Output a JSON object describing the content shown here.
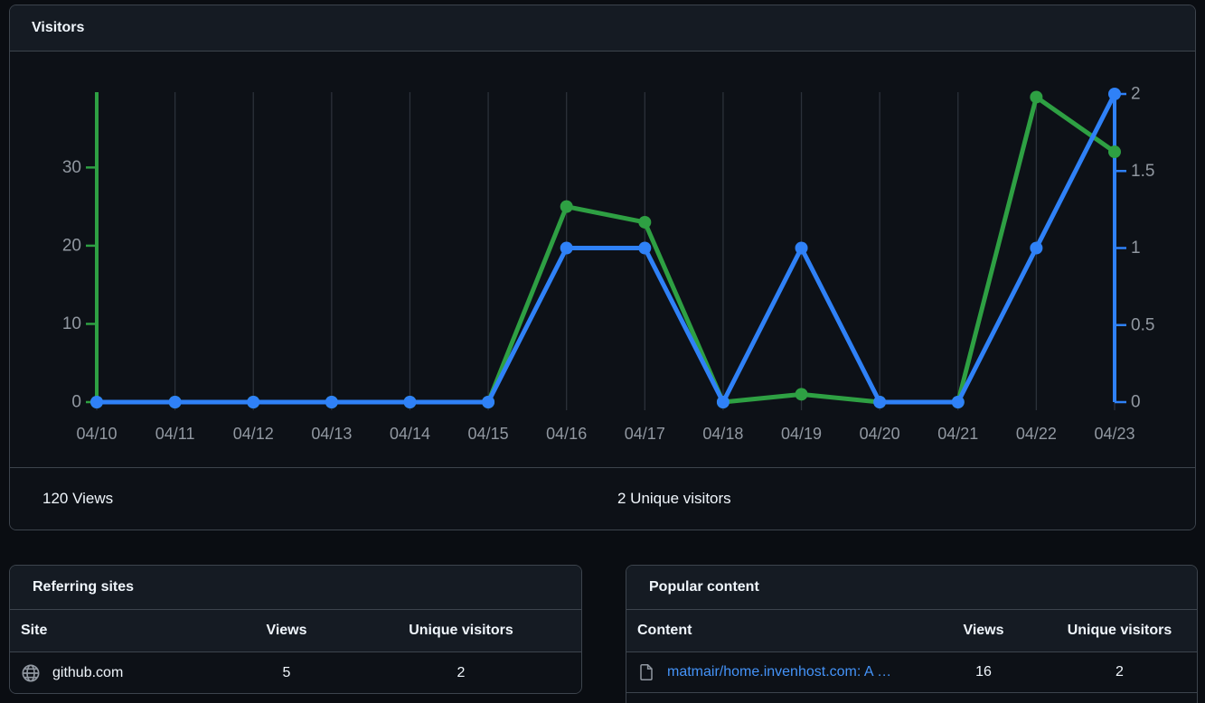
{
  "visitors_card": {
    "title": "Visitors",
    "footer": {
      "views_total": "120 Views",
      "unique_total": "2 Unique visitors"
    }
  },
  "chart_data": {
    "type": "line",
    "title": "Visitors",
    "categories": [
      "04/10",
      "04/11",
      "04/12",
      "04/13",
      "04/14",
      "04/15",
      "04/16",
      "04/17",
      "04/18",
      "04/19",
      "04/20",
      "04/21",
      "04/22",
      "04/23"
    ],
    "series": [
      {
        "name": "Views",
        "axis": "left",
        "color": "#2ea043",
        "values": [
          0,
          0,
          0,
          0,
          0,
          0,
          25,
          23,
          0,
          1,
          0,
          0,
          39,
          32
        ]
      },
      {
        "name": "Unique visitors",
        "axis": "right",
        "color": "#2f81f7",
        "values": [
          0,
          0,
          0,
          0,
          0,
          0,
          1,
          1,
          0,
          1,
          0,
          0,
          1,
          2
        ]
      }
    ],
    "left_axis": {
      "ticks": [
        0,
        10,
        20,
        30
      ],
      "max": 39.4,
      "color": "#2ea043"
    },
    "right_axis": {
      "ticks": [
        0,
        0.5,
        1,
        1.5,
        2
      ],
      "max": 2,
      "color": "#2f81f7"
    },
    "grid": "vertical",
    "grid_color": "#2b313a",
    "label_color": "#9198a1",
    "legend": "none"
  },
  "referring_sites": {
    "title": "Referring sites",
    "columns": [
      "Site",
      "Views",
      "Unique visitors"
    ],
    "rows": [
      {
        "icon": "globe-icon",
        "site": "github.com",
        "views": "5",
        "unique": "2"
      }
    ]
  },
  "popular_content": {
    "title": "Popular content",
    "columns": [
      "Content",
      "Views",
      "Unique visitors"
    ],
    "rows": [
      {
        "icon": "file-icon",
        "content": "matmair/home.invenhost.com: A …",
        "views": "16",
        "unique": "2"
      }
    ]
  },
  "colors": {
    "page_bg": "#0a0d12",
    "card_bg": "#0d1117",
    "header_bg": "#151b23",
    "border": "#3d444d",
    "text": "#f0f6fc",
    "muted": "#9198a1",
    "link": "#4493f8",
    "views_green": "#2ea043",
    "unique_blue": "#2f81f7"
  }
}
